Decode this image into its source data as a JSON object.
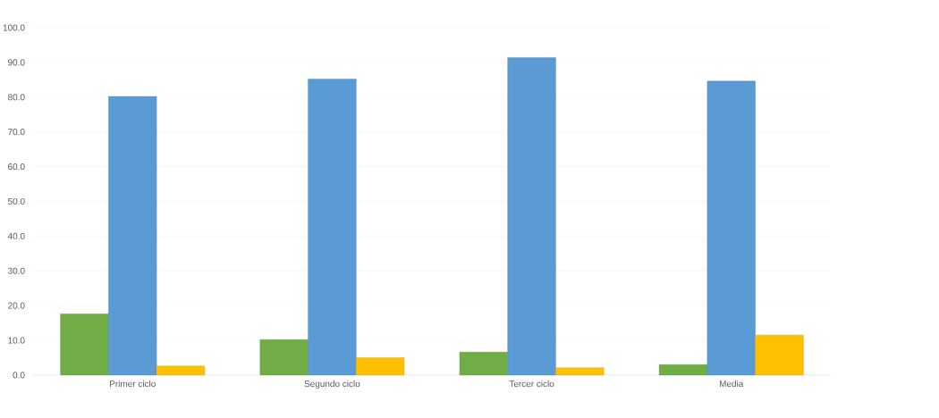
{
  "chart_data": {
    "type": "bar",
    "categories": [
      "Primer ciclo",
      "Segundo ciclo",
      "Tercer ciclo",
      "Media"
    ],
    "series": [
      {
        "color": "#70ad47",
        "values": [
          17.6,
          10.2,
          6.6,
          3.0
        ]
      },
      {
        "color": "#5b9bd5",
        "values": [
          80.2,
          85.2,
          91.4,
          84.6
        ]
      },
      {
        "color": "#ffc000",
        "values": [
          2.6,
          5.0,
          2.1,
          11.5
        ]
      }
    ],
    "ylim": [
      0,
      100
    ],
    "yticks": [
      {
        "value": 0,
        "label": "0.0"
      },
      {
        "value": 10,
        "label": "10.0"
      },
      {
        "value": 20,
        "label": "20.0"
      },
      {
        "value": 30,
        "label": "30.0"
      },
      {
        "value": 40,
        "label": "40.0"
      },
      {
        "value": 50,
        "label": "50.0"
      },
      {
        "value": 60,
        "label": "60.0"
      },
      {
        "value": 70,
        "label": "70.0"
      },
      {
        "value": 80,
        "label": "80.0"
      },
      {
        "value": 90,
        "label": "90.0"
      },
      {
        "value": 100,
        "label": "100.0"
      }
    ],
    "grid": "y"
  }
}
